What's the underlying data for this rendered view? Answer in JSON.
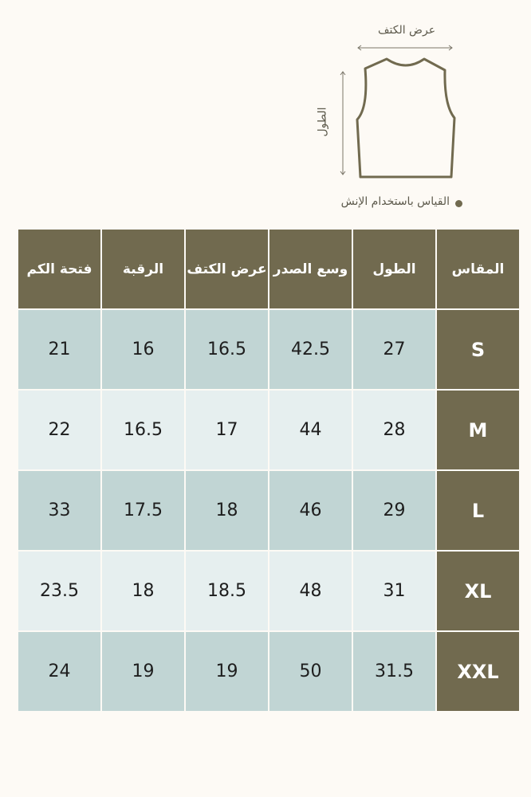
{
  "diagram": {
    "shoulder_label": "عرض الكتف",
    "length_label": "الطول",
    "note": "القياس باستخدام الإنش",
    "outline_color": "#716a4f"
  },
  "table": {
    "headers": [
      "المقاس",
      "الطول",
      "وسع الصدر",
      "عرض الكتف",
      "الرقبة",
      "فتحة الكم"
    ],
    "rows": [
      [
        "S",
        "27",
        "42.5",
        "16.5",
        "16",
        "21"
      ],
      [
        "M",
        "28",
        "44",
        "17",
        "16.5",
        "22"
      ],
      [
        "L",
        "29",
        "46",
        "18",
        "17.5",
        "33"
      ],
      [
        "XL",
        "31",
        "48",
        "18.5",
        "18",
        "23.5"
      ],
      [
        "XXL",
        "31.5",
        "50",
        "19",
        "19",
        "24"
      ]
    ],
    "colors": {
      "header": "#716a4f",
      "row_a": "#c1d5d4",
      "row_b": "#e6efef"
    }
  }
}
